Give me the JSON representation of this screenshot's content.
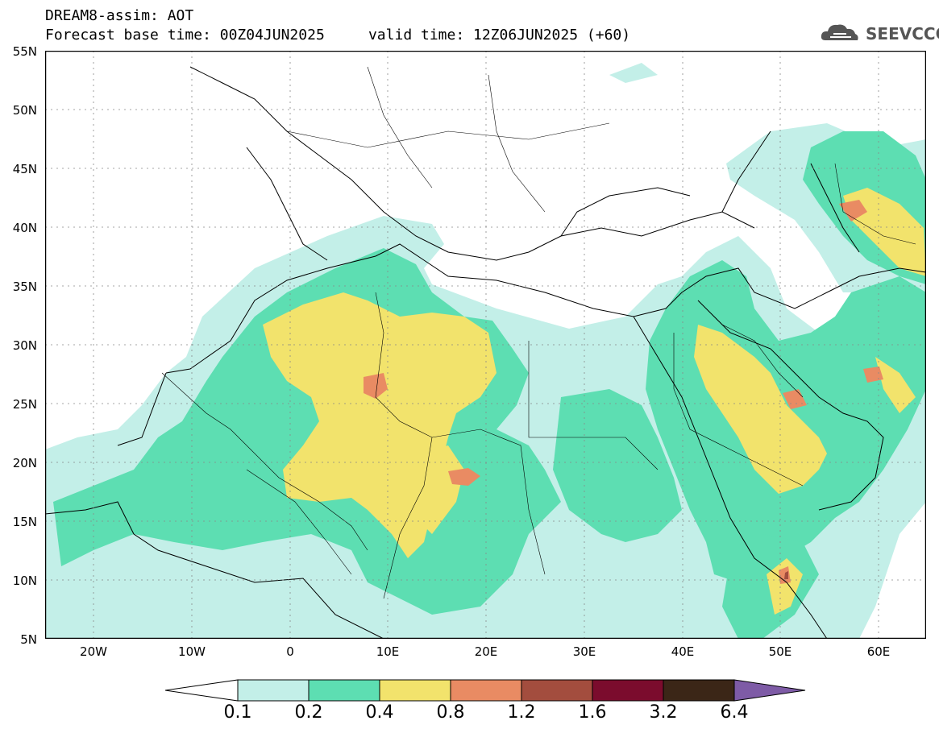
{
  "header": {
    "title_line1": "DREAM8-assim: AOT",
    "title_line2": "Forecast base time: 00Z04JUN2025     valid time: 12Z06JUN2025 (+60)"
  },
  "logo": {
    "text": "SEEVCCC",
    "icon": "cloud-icon"
  },
  "map": {
    "variable": "AOT",
    "lat_labels": [
      "55N",
      "50N",
      "45N",
      "40N",
      "35N",
      "30N",
      "25N",
      "20N",
      "15N",
      "10N",
      "5N"
    ],
    "lon_labels": [
      "20W",
      "10W",
      "0",
      "10E",
      "20E",
      "30E",
      "40E",
      "50E",
      "60E"
    ]
  },
  "colorbar": {
    "labels": [
      "0.1",
      "0.2",
      "0.4",
      "0.8",
      "1.2",
      "1.6",
      "3.2",
      "6.4"
    ],
    "colors": [
      "#ffffff",
      "#c3efe8",
      "#5ddeb2",
      "#f2e36c",
      "#e98b63",
      "#a34d3e",
      "#7b0c2d",
      "#3b2617",
      "#7e5ba6"
    ]
  }
}
